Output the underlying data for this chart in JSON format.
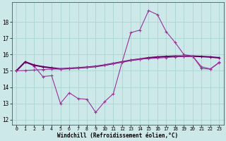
{
  "xlabel": "Windchill (Refroidissement éolien,°C)",
  "ylabel": "",
  "background_color": "#cce8e8",
  "grid_color": "#aad4d0",
  "line_color": "#993399",
  "line_color2": "#660066",
  "x_ticks": [
    0,
    1,
    2,
    3,
    4,
    5,
    6,
    7,
    8,
    9,
    10,
    11,
    12,
    13,
    14,
    15,
    16,
    17,
    18,
    19,
    20,
    21,
    22,
    23
  ],
  "y_ticks": [
    12,
    13,
    14,
    15,
    16,
    17,
    18
  ],
  "ylim": [
    11.7,
    19.2
  ],
  "xlim": [
    -0.5,
    23.5
  ],
  "line1_x": [
    0,
    1,
    2,
    3,
    4,
    5,
    6,
    7,
    8,
    9,
    10,
    11,
    12,
    13,
    14,
    15,
    16,
    17,
    18,
    19,
    20,
    21,
    22,
    23
  ],
  "line1_y": [
    15.0,
    15.55,
    15.3,
    14.65,
    14.7,
    13.0,
    13.65,
    13.3,
    13.25,
    12.45,
    13.1,
    13.6,
    15.55,
    17.35,
    17.5,
    18.7,
    18.45,
    17.4,
    16.75,
    16.0,
    15.9,
    15.15,
    15.1,
    15.5
  ],
  "line2_x": [
    0,
    1,
    2,
    3,
    4,
    5,
    6,
    7,
    8,
    9,
    10,
    11,
    12,
    13,
    14,
    15,
    16,
    17,
    18,
    19,
    20,
    21,
    22,
    23
  ],
  "line2_y": [
    15.0,
    15.55,
    15.35,
    15.25,
    15.18,
    15.12,
    15.15,
    15.18,
    15.22,
    15.27,
    15.35,
    15.45,
    15.55,
    15.65,
    15.72,
    15.8,
    15.85,
    15.88,
    15.9,
    15.9,
    15.9,
    15.88,
    15.85,
    15.8
  ],
  "line3_x": [
    0,
    1,
    2,
    3,
    4,
    5,
    6,
    7,
    8,
    9,
    10,
    11,
    12,
    13,
    14,
    15,
    16,
    17,
    18,
    19,
    20,
    21,
    22,
    23
  ],
  "line3_y": [
    15.0,
    15.02,
    15.05,
    15.08,
    15.1,
    15.12,
    15.15,
    15.18,
    15.22,
    15.27,
    15.35,
    15.45,
    15.55,
    15.65,
    15.72,
    15.75,
    15.78,
    15.82,
    15.85,
    15.88,
    15.9,
    15.25,
    15.12,
    15.52
  ]
}
